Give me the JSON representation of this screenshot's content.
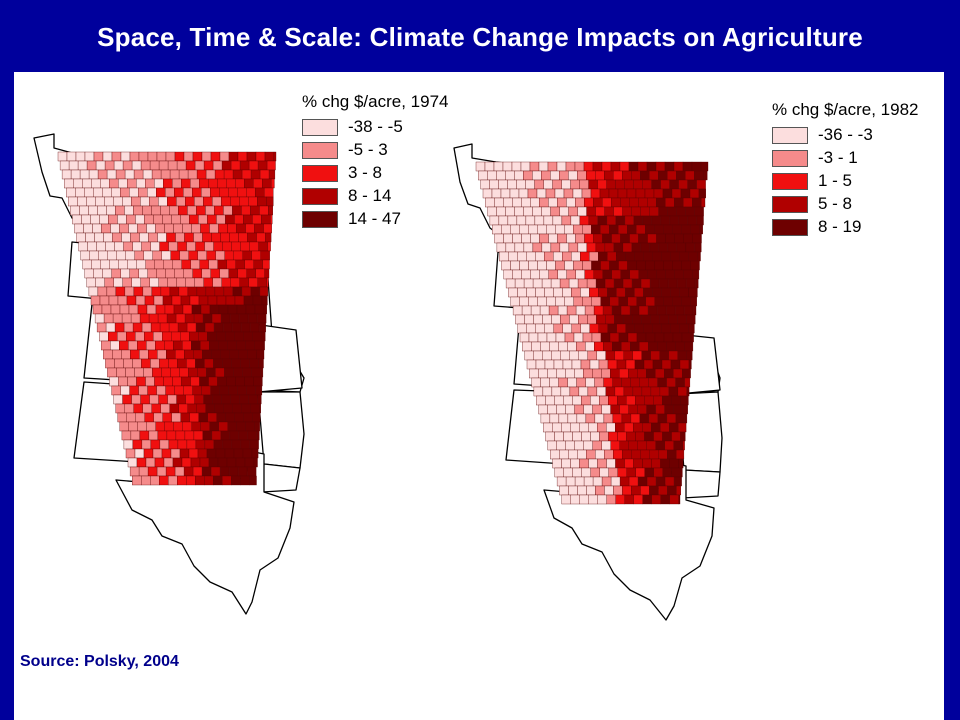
{
  "title": "Space, Time & Scale: Climate Change Impacts on Agriculture",
  "source": "Source: Polsky, 2004",
  "maps": [
    {
      "legend_title": "% chg $/acre, 1974",
      "classes": [
        {
          "label": "-38 - -5",
          "color": "#fcdede"
        },
        {
          "label": "-5 - 3",
          "color": "#f58b8b"
        },
        {
          "label": "3 - 8",
          "color": "#f01010"
        },
        {
          "label": "8 - 14",
          "color": "#b00000"
        },
        {
          "label": "14 - 47",
          "color": "#6e0000"
        }
      ]
    },
    {
      "legend_title": "% chg $/acre, 1982",
      "classes": [
        {
          "label": "-36 - -3",
          "color": "#fcdede"
        },
        {
          "label": "-3 - 1",
          "color": "#f58b8b"
        },
        {
          "label": "1 - 5",
          "color": "#f01010"
        },
        {
          "label": "5 - 8",
          "color": "#b00000"
        },
        {
          "label": "8 - 19",
          "color": "#6e0000"
        }
      ]
    }
  ]
}
